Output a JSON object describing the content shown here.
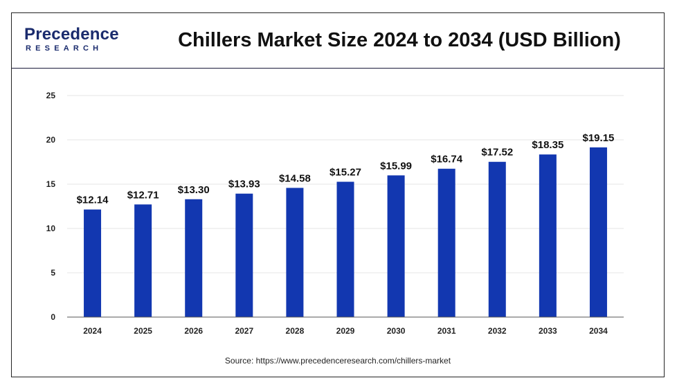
{
  "logo": {
    "name": "Precedence",
    "sub": "RESEARCH"
  },
  "title": "Chillers Market Size 2024 to 2034 (USD Billion)",
  "source": "Source: https://www.precedenceresearch.com/chillers-market",
  "colors": {
    "bar": "#1237b0",
    "grid": "#e6e6e6",
    "axis": "#555555"
  },
  "chart_data": {
    "type": "bar",
    "title": "Chillers Market Size 2024 to 2034 (USD Billion)",
    "categories": [
      "2024",
      "2025",
      "2026",
      "2027",
      "2028",
      "2029",
      "2030",
      "2031",
      "2032",
      "2033",
      "2034"
    ],
    "values": [
      12.14,
      12.71,
      13.3,
      13.93,
      14.58,
      15.27,
      15.99,
      16.74,
      17.52,
      18.35,
      19.15
    ],
    "data_labels": [
      "$12.14",
      "$12.71",
      "$13.30",
      "$13.93",
      "$14.58",
      "$15.27",
      "$15.99",
      "$16.74",
      "$17.52",
      "$18.35",
      "$19.15"
    ],
    "yticks": [
      "0",
      "5",
      "10",
      "15",
      "20",
      "25"
    ],
    "ylim": [
      0,
      25
    ],
    "xlabel": "",
    "ylabel": "",
    "grid": true,
    "legend": "none"
  }
}
